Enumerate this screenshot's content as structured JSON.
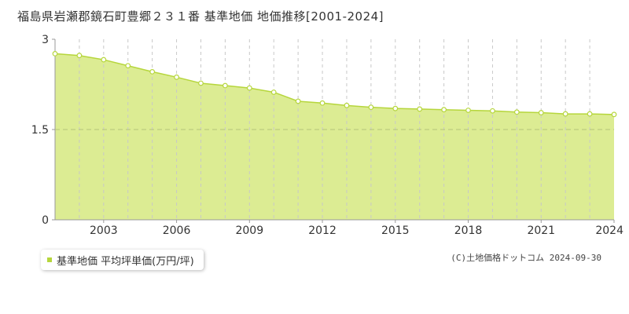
{
  "title": "福島県岩瀬郡鏡石町豊郷２３１番 基準地価 地価推移[2001-2024]",
  "legend_label": "基準地価 平均坪単価(万円/坪)",
  "source": "(C)土地価格ドットコム 2024-09-30",
  "colors": {
    "area_fill": "#dcec93",
    "line": "#b6d63c",
    "grid": "#c8c8c8",
    "axis": "#999999",
    "text": "#333333"
  },
  "chart_data": {
    "type": "area",
    "x": [
      2001,
      2002,
      2003,
      2004,
      2005,
      2006,
      2007,
      2008,
      2009,
      2010,
      2011,
      2012,
      2013,
      2014,
      2015,
      2016,
      2017,
      2018,
      2019,
      2020,
      2021,
      2022,
      2023,
      2024
    ],
    "values": [
      2.76,
      2.73,
      2.66,
      2.56,
      2.46,
      2.37,
      2.27,
      2.23,
      2.19,
      2.12,
      1.97,
      1.94,
      1.9,
      1.87,
      1.85,
      1.84,
      1.83,
      1.82,
      1.81,
      1.79,
      1.78,
      1.76,
      1.76,
      1.75
    ],
    "xlim": [
      2001,
      2024
    ],
    "ylim": [
      0,
      3
    ],
    "xticks": [
      2003,
      2006,
      2009,
      2012,
      2015,
      2018,
      2021,
      2024
    ],
    "yticks": [
      0,
      1.5,
      3
    ],
    "ytick_labels": [
      "0",
      "1.5",
      "3"
    ],
    "grid": true
  }
}
